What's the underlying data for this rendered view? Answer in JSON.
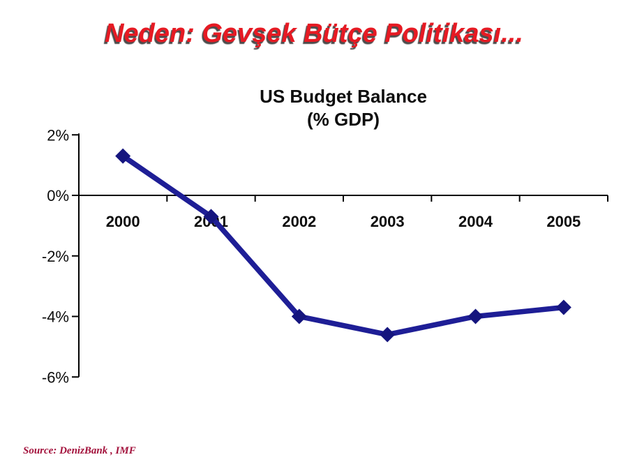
{
  "slide": {
    "title": "Neden: Gevşek Bütçe Politikası...",
    "title_color": "#E61A23",
    "background_color": "#FFFFFF"
  },
  "chart_data": {
    "type": "line",
    "title": "US Budget Balance",
    "subtitle": "(% GDP)",
    "categories": [
      "2000",
      "2001",
      "2002",
      "2003",
      "2004",
      "2005"
    ],
    "values": [
      1.3,
      -0.7,
      -4.0,
      -4.6,
      -4.0,
      -3.7
    ],
    "ylim": [
      -6,
      2
    ],
    "yticks": [
      {
        "value": 2,
        "label": "2%"
      },
      {
        "value": 0,
        "label": "0%"
      },
      {
        "value": -2,
        "label": "-2%"
      },
      {
        "value": -4,
        "label": "-4%"
      },
      {
        "value": -6,
        "label": "-6%"
      }
    ],
    "grid": false,
    "legend": "none",
    "marker_shape": "diamond",
    "line_color": "#1E1E96",
    "marker_color": "#15157E",
    "axis_color": "#000000"
  },
  "footer": {
    "source": "Source: DenizBank , IMF",
    "source_color": "#A3123C"
  }
}
